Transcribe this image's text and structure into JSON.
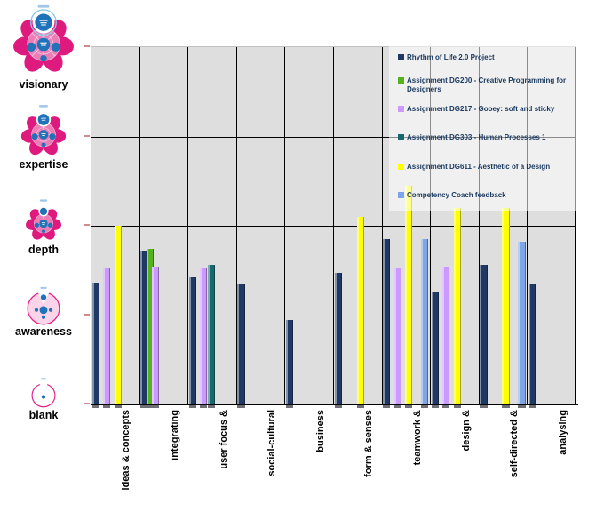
{
  "chart_data": {
    "type": "bar",
    "title": "",
    "categories": [
      "ideas & concepts",
      "integrating",
      "user focus &",
      "social-cultural",
      "business",
      "form & senses",
      "teamwork &",
      "design &",
      "self-directed &",
      "analysing"
    ],
    "series": [
      {
        "name": "Rhythm of Life 2.0 Project",
        "color": "#1F3864",
        "values": [
          1.36,
          1.72,
          1.42,
          1.34,
          0.95,
          1.47,
          1.85,
          1.26,
          1.56,
          1.34
        ]
      },
      {
        "name": "Assignment DG200 - Creative Programming for Designers",
        "color": "#53B21E",
        "values": [
          null,
          1.74,
          null,
          null,
          null,
          null,
          null,
          null,
          null,
          null
        ]
      },
      {
        "name": "Assignment DG217 - Gooey: soft and sticky",
        "color": "#CC99FF",
        "values": [
          1.53,
          1.54,
          1.53,
          null,
          null,
          null,
          1.53,
          1.54,
          null,
          null
        ]
      },
      {
        "name": "Assignment DG303 - Human Processes 1",
        "color": "#17696F",
        "values": [
          null,
          null,
          1.56,
          null,
          null,
          null,
          null,
          null,
          null,
          null
        ]
      },
      {
        "name": "Assignment DG611 - Aesthetic of a Design",
        "color": "#FFFF00",
        "values": [
          2.0,
          null,
          null,
          null,
          null,
          2.1,
          2.45,
          2.2,
          2.2,
          null
        ]
      },
      {
        "name": "Competency Coach feedback",
        "color": "#7DA5E8",
        "values": [
          null,
          null,
          null,
          null,
          null,
          null,
          1.85,
          null,
          1.82,
          null
        ]
      }
    ],
    "ylim": [
      0,
      4
    ],
    "y_levels": [
      {
        "value": 4,
        "label": "visionary"
      },
      {
        "value": 3,
        "label": "expertise"
      },
      {
        "value": 2,
        "label": "depth"
      },
      {
        "value": 1,
        "label": "awareness"
      },
      {
        "value": 0,
        "label": "blank"
      }
    ],
    "grid": true,
    "legend_position": "top-right",
    "plot_bg": "#DEDEDE"
  },
  "icons": {
    "visionary": "competency-flower-visionary-icon",
    "expertise": "competency-flower-expertise-icon",
    "depth": "competency-flower-depth-icon",
    "awareness": "competency-circle-awareness-icon",
    "blank": "competency-circle-blank-icon"
  },
  "colors": {
    "flower_magenta": "#E0218A",
    "dot_blue": "#2073B8",
    "axis_tick_pink": "#D08A8A",
    "legend_text": "#17375D",
    "plot_background": "#DEDEDE"
  }
}
